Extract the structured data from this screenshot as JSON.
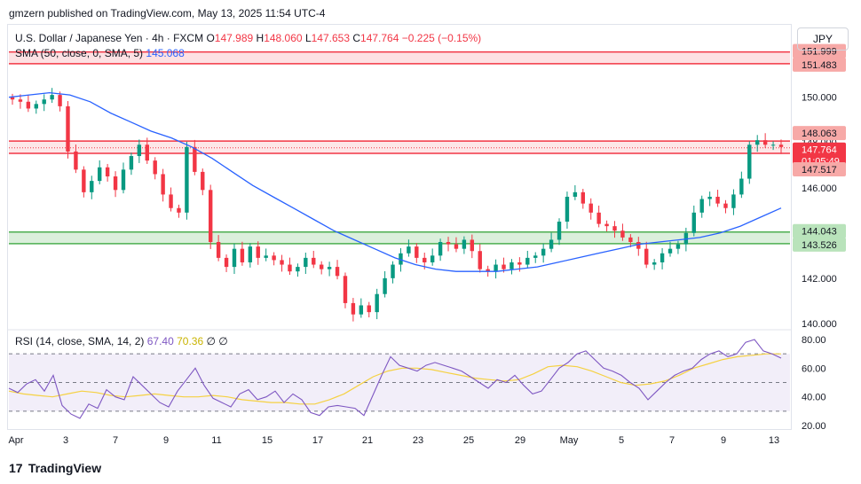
{
  "header": {
    "text": "gmzern published on TradingView.com, May 13, 2025 11:54 UTC-4"
  },
  "legend": {
    "symbol": "U.S. Dollar / Japanese Yen · 4h · FXCM",
    "o_label": "O",
    "o_value": "147.989",
    "h_label": "H",
    "h_value": "148.060",
    "l_label": "L",
    "l_value": "147.653",
    "c_label": "C",
    "c_value": "147.764",
    "change": "−0.225 (−0.15%)",
    "sma_label": "SMA (50, close, 0, SMA, 5)",
    "sma_value": "145.068",
    "rsi_label": "RSI (14, close, SMA, 14, 2)",
    "rsi_value": "67.40",
    "rsi_ma_value": "70.36",
    "rsi_extra": "∅ ∅"
  },
  "currency_button": "JPY",
  "footer": {
    "logo": "17",
    "brand": "TradingView"
  },
  "colors": {
    "up": "#089981",
    "down": "#f23645",
    "sma": "#2962ff",
    "rsi": "#7e57c2",
    "rsi_ma": "#f5d142",
    "resistance": "#f23645",
    "support": "#4caf50"
  },
  "chart_data": {
    "type": "candlestick",
    "title": "U.S. Dollar / Japanese Yen · 4h · FXCM",
    "y_ticks": [
      "152.000",
      "150.000",
      "148.000",
      "146.000",
      "144.000",
      "142.000",
      "140.000"
    ],
    "y_tick_values": [
      152,
      150,
      148,
      146,
      144,
      142,
      140
    ],
    "ylim": [
      139.8,
      153.2
    ],
    "x_ticks": [
      "Apr",
      "3",
      "7",
      "9",
      "11",
      "15",
      "17",
      "21",
      "23",
      "25",
      "29",
      "May",
      "5",
      "7",
      "9",
      "13"
    ],
    "price_labels": {
      "resistance_top": "151.999",
      "resistance_bottom": "151.483",
      "zone_top": "148.063",
      "last_price": "147.764",
      "countdown": "01:05:49",
      "zone_bottom": "147.517",
      "support_top": "144.043",
      "support_bottom": "143.526"
    },
    "zones": {
      "resistance": [
        151.483,
        151.999
      ],
      "mid": [
        147.517,
        148.063
      ],
      "support": [
        143.526,
        144.043
      ]
    },
    "close_path": [
      149.9,
      149.8,
      149.5,
      149.7,
      149.9,
      150.1,
      149.6,
      147.6,
      146.8,
      145.8,
      146.3,
      146.9,
      146.5,
      145.9,
      146.8,
      147.4,
      147.9,
      147.2,
      146.6,
      145.7,
      145.1,
      144.9,
      147.8,
      146.7,
      145.9,
      143.6,
      142.9,
      142.5,
      143.3,
      142.7,
      143.4,
      142.9,
      143.0,
      142.8,
      142.6,
      142.3,
      142.5,
      142.9,
      142.6,
      142.4,
      142.5,
      142.1,
      140.9,
      140.4,
      140.8,
      140.5,
      141.3,
      142.0,
      142.6,
      143.1,
      143.4,
      142.9,
      142.7,
      143.0,
      143.6,
      143.5,
      143.3,
      143.7,
      143.2,
      142.4,
      142.3,
      142.6,
      142.4,
      142.7,
      142.6,
      142.9,
      143.0,
      143.3,
      143.7,
      144.5,
      145.6,
      145.8,
      145.3,
      144.9,
      144.4,
      144.3,
      144.1,
      143.8,
      143.6,
      143.3,
      142.6,
      142.7,
      143.1,
      143.3,
      143.5,
      144.0,
      144.9,
      145.5,
      145.6,
      145.3,
      145.1,
      145.7,
      146.4,
      147.9,
      148.1,
      147.9,
      147.9,
      147.8
    ],
    "sma_path": [
      150.0,
      150.1,
      150.2,
      150.1,
      149.8,
      149.3,
      148.9,
      148.5,
      148.2,
      147.8,
      147.3,
      146.7,
      146.1,
      145.6,
      145.1,
      144.6,
      144.1,
      143.7,
      143.3,
      142.9,
      142.6,
      142.4,
      142.3,
      142.3,
      142.3,
      142.4,
      142.5,
      142.7,
      142.9,
      143.1,
      143.3,
      143.5,
      143.6,
      143.7,
      143.8,
      144.0,
      144.3,
      144.7,
      145.1
    ],
    "rsi_ticks": [
      "80.00",
      "60.00",
      "40.00",
      "20.00"
    ],
    "rsi_tick_values": [
      80,
      60,
      40,
      20
    ],
    "rsi_levels": [
      70,
      50,
      30
    ],
    "rsi_path": [
      46,
      43,
      49,
      52,
      44,
      55,
      34,
      28,
      25,
      35,
      32,
      45,
      40,
      38,
      54,
      48,
      42,
      36,
      33,
      44,
      52,
      60,
      48,
      39,
      36,
      33,
      42,
      45,
      38,
      40,
      44,
      36,
      42,
      38,
      29,
      27,
      33,
      34,
      33,
      32,
      27,
      41,
      55,
      68,
      62,
      60,
      58,
      62,
      64,
      62,
      60,
      58,
      54,
      50,
      46,
      52,
      50,
      55,
      48,
      42,
      44,
      52,
      60,
      64,
      70,
      72,
      66,
      60,
      58,
      55,
      50,
      46,
      38,
      44,
      50,
      55,
      58,
      60,
      66,
      70,
      72,
      68,
      70,
      78,
      80,
      72,
      70,
      67
    ],
    "rsi_ma_path": [
      44,
      42,
      41,
      40,
      42,
      44,
      43,
      41,
      40,
      41,
      42,
      41,
      40,
      40,
      41,
      40,
      38,
      37,
      36,
      36,
      35,
      35,
      38,
      42,
      48,
      54,
      58,
      60,
      60,
      59,
      57,
      55,
      53,
      52,
      51,
      52,
      56,
      61,
      62,
      61,
      58,
      54,
      50,
      48,
      49,
      51,
      55,
      60,
      63,
      66,
      68,
      69,
      70,
      70
    ]
  }
}
